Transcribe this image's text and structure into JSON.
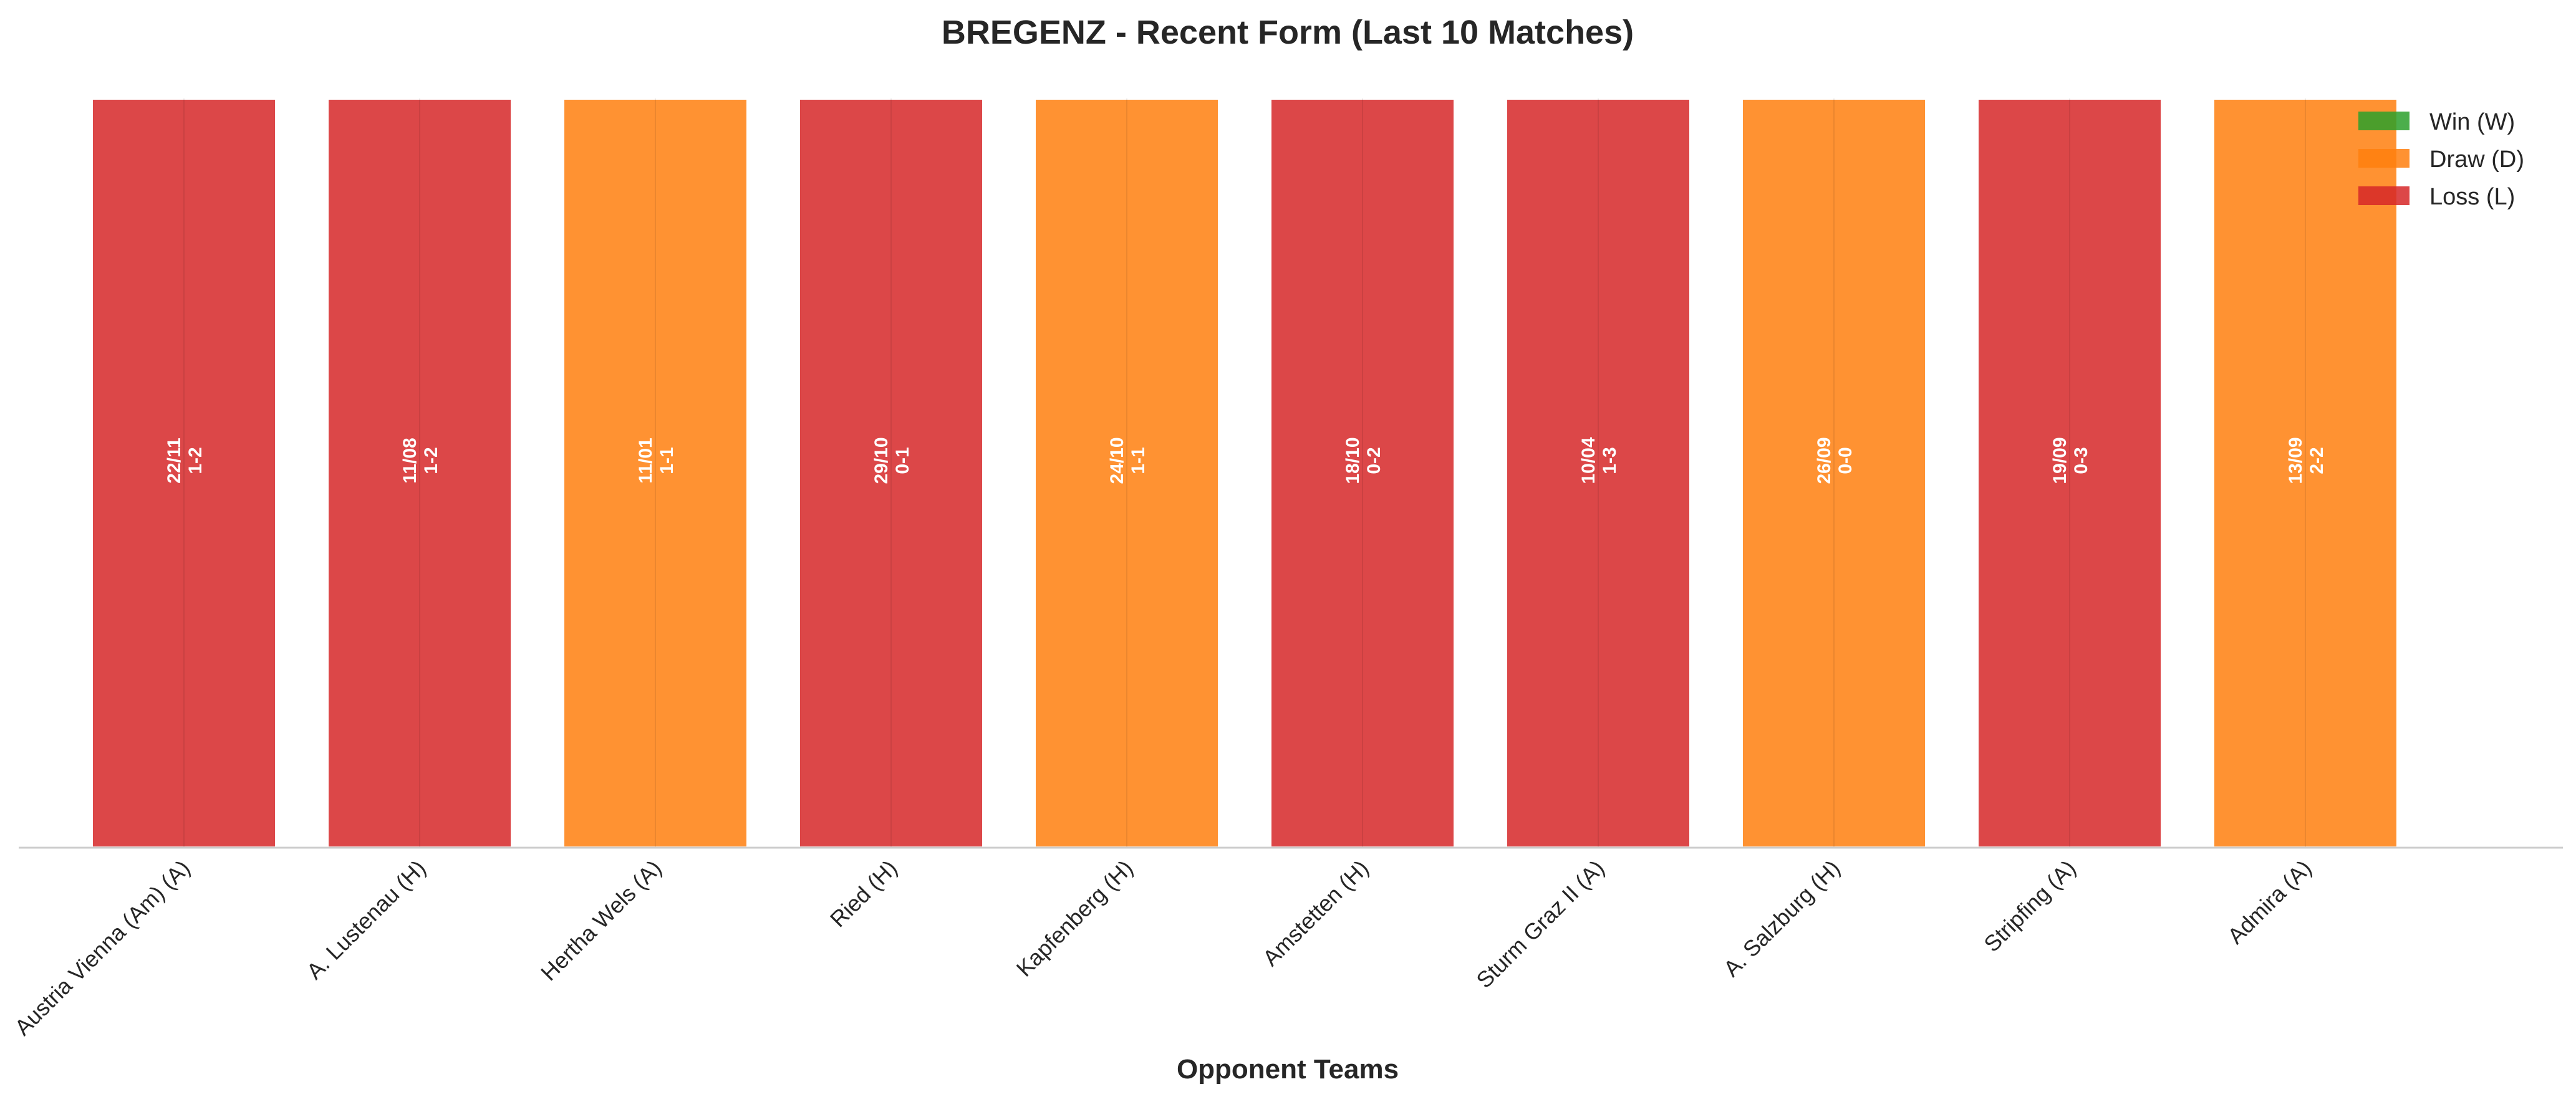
{
  "chart_data": {
    "type": "bar",
    "title": "BREGENZ - Recent Form (Last 10 Matches)",
    "xlabel": "Opponent Teams",
    "ylabel": "",
    "categories": [
      "Austria Vienna (Am) (A)",
      "A. Lustenau (H)",
      "Hertha Wels (A)",
      "Ried (H)",
      "Kapfenberg (H)",
      "Amstetten (H)",
      "Sturm Graz II (A)",
      "A. Salzburg (H)",
      "Stripfing (A)",
      "Admira (A)"
    ],
    "values": [
      1,
      1,
      1,
      1,
      1,
      1,
      1,
      1,
      1,
      1
    ],
    "ylim": [
      0,
      1
    ],
    "results": [
      "L",
      "L",
      "D",
      "L",
      "D",
      "L",
      "L",
      "D",
      "L",
      "D"
    ],
    "dates": [
      "22/11",
      "11/08",
      "11/01",
      "29/10",
      "24/10",
      "18/10",
      "10/04",
      "26/09",
      "19/09",
      "13/09"
    ],
    "scores": [
      "1-2",
      "1-2",
      "1-1",
      "0-1",
      "1-1",
      "0-2",
      "1-3",
      "0-0",
      "0-3",
      "2-2"
    ],
    "legend": {
      "position": "top-right",
      "entries": [
        {
          "key": "W",
          "label": "Win (W)",
          "color": "#2ca02c"
        },
        {
          "key": "D",
          "label": "Draw (D)",
          "color": "#ff7f0e"
        },
        {
          "key": "L",
          "label": "Loss (L)",
          "color": "#d62728"
        }
      ]
    },
    "grid": false
  }
}
